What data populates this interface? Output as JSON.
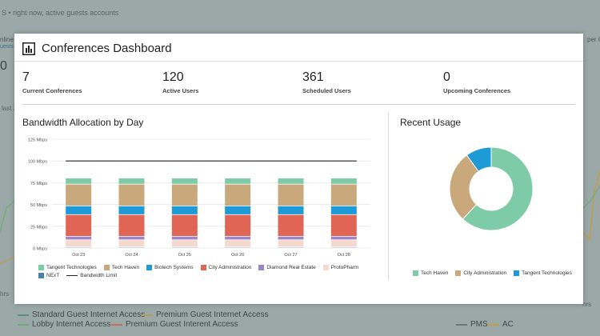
{
  "background": {
    "top_text": "S • right now, active guests accounts",
    "left_labels": [
      "nline",
      "uests",
      "0",
      "last 3",
      "hrs"
    ],
    "right_labels": [
      "per Gu",
      "hrs"
    ],
    "legend": [
      {
        "label": "Standard Guest Internet Access",
        "color": "#5f8f7a"
      },
      {
        "label": "Premium Guest Internet Access",
        "color": "#b89a5c"
      },
      {
        "label": "Lobby Internet Access",
        "color": "#6fae6f"
      },
      {
        "label": "Premium Guest Interent Access",
        "color": "#c96a5a"
      },
      {
        "label": "PMS",
        "color": "#6b7776"
      },
      {
        "label": "AC",
        "color": "#c79a3f"
      }
    ]
  },
  "dashboard": {
    "title": "Conferences Dashboard",
    "icon": "bar-chart-icon",
    "stats": [
      {
        "value": "7",
        "label": "Current Conferences"
      },
      {
        "value": "120",
        "label": "Active Users"
      },
      {
        "value": "361",
        "label": "Scheduled Users"
      },
      {
        "value": "0",
        "label": "Upcoming Conferences"
      }
    ],
    "bandwidth_title": "Bandwidth Allocation by Day",
    "recent_title": "Recent Usage"
  },
  "chart_data": [
    {
      "type": "bar",
      "title": "Bandwidth Allocation by Day",
      "categories": [
        "Oct 23",
        "Oct 24",
        "Oct 25",
        "Oct 26",
        "Oct 27",
        "Oct 28"
      ],
      "ylim": [
        0,
        125
      ],
      "yticks": [
        "0 Mbps",
        "25 Mbps",
        "50 Mbps",
        "75 Mbps",
        "100 Mbps",
        "125 Mbps"
      ],
      "ytick_values": [
        0,
        25,
        50,
        75,
        100,
        125
      ],
      "series": [
        {
          "name": "NExT",
          "color": "#4a7fa8",
          "values": [
            1,
            1,
            1,
            1,
            1,
            1
          ]
        },
        {
          "name": "ProtoPharm",
          "color": "#f5d9cc",
          "values": [
            8,
            8,
            8,
            8,
            8,
            8
          ]
        },
        {
          "name": "Diamond Real Estate",
          "color": "#9b86c6",
          "values": [
            4,
            4,
            4,
            4,
            4,
            4
          ]
        },
        {
          "name": "City Administration",
          "color": "#e06555",
          "values": [
            25,
            25,
            25,
            25,
            25,
            25
          ]
        },
        {
          "name": "Biotech Systems",
          "color": "#1e9ad6",
          "values": [
            10,
            10,
            10,
            10,
            10,
            10
          ]
        },
        {
          "name": "Tech Haven",
          "color": "#c9a97c",
          "values": [
            25,
            25,
            25,
            25,
            25,
            25
          ]
        },
        {
          "name": "Tangent Technologies",
          "color": "#7ecba8",
          "values": [
            7,
            7,
            7,
            7,
            7,
            7
          ]
        }
      ],
      "lines": [
        {
          "name": "Bandwidth Limit",
          "color": "#222222",
          "value": 100
        }
      ],
      "legend": [
        {
          "name": "Tangent Technologies",
          "color": "#7ecba8",
          "kind": "box"
        },
        {
          "name": "Tech Haven",
          "color": "#c9a97c",
          "kind": "box"
        },
        {
          "name": "Biotech Systems",
          "color": "#1e9ad6",
          "kind": "box"
        },
        {
          "name": "City Administration",
          "color": "#e06555",
          "kind": "box"
        },
        {
          "name": "Diamond Real Estate",
          "color": "#9b86c6",
          "kind": "box"
        },
        {
          "name": "ProtoPharm",
          "color": "#f5d9cc",
          "kind": "box"
        },
        {
          "name": "NExT",
          "color": "#4a7fa8",
          "kind": "box"
        },
        {
          "name": "Bandwidth Limit",
          "color": "#222222",
          "kind": "line"
        }
      ]
    },
    {
      "type": "pie",
      "title": "Recent Usage",
      "donut": true,
      "slices": [
        {
          "name": "Tech Haven",
          "value": 62,
          "color": "#7ecba8"
        },
        {
          "name": "City Administration",
          "value": 28,
          "color": "#c9a97c"
        },
        {
          "name": "Tangent Technologies",
          "value": 10,
          "color": "#1e9ad6"
        }
      ],
      "legend": [
        {
          "name": "Tech Haven",
          "color": "#7ecba8"
        },
        {
          "name": "City Administration",
          "color": "#c9a97c"
        },
        {
          "name": "Tangent Technologies",
          "color": "#1e9ad6"
        }
      ]
    }
  ]
}
